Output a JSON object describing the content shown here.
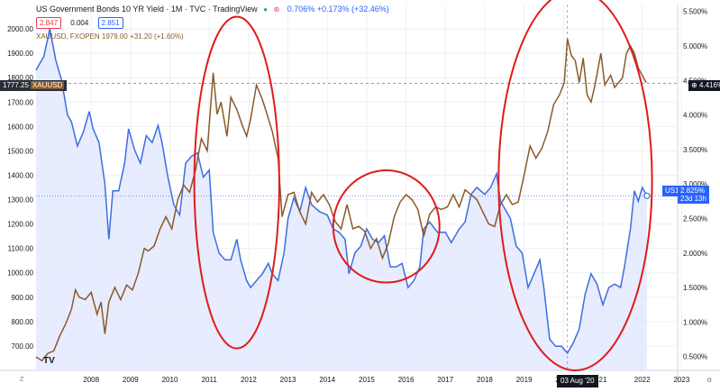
{
  "header": {
    "title": "US Government Bonds 10 YR Yield · 1M · TVC · TradingView",
    "change": "0.706% +0.173% (+32.46%)",
    "bid": "2.847",
    "spread": "0.004",
    "ask": "2.851",
    "gold_line": "XAUUSD, FXOPEN  1979.00  +31.20 (+1.60%)"
  },
  "tags": {
    "gold_left_value": "1777.25",
    "gold_left_name": "XAUUSD",
    "gold_right": "4.416%",
    "us10_left": "US10",
    "us10_right_value": "2.825%",
    "us10_right_time": "23d 13h",
    "crosshair_date": "03 Aug '20"
  },
  "colors": {
    "gold": "#8a5a2b",
    "yield": "#3d6ee0",
    "fill": "#dfe6ff",
    "ellipse": "#e01b1b",
    "grid": "#eef0f3"
  },
  "chart_data": {
    "type": "line",
    "title": "US Government Bonds 10 YR Yield · 1M · TVC · TradingView",
    "left_axis": {
      "name": "XAUUSD",
      "ylim": [
        600,
        2100
      ],
      "ticks": [
        "700.00",
        "800.00",
        "900.00",
        "1000.00",
        "1100.00",
        "1200.00",
        "1300.00",
        "1400.00",
        "1500.00",
        "1600.00",
        "1700.00",
        "1800.00",
        "1900.00",
        "2000.00"
      ]
    },
    "right_axis": {
      "name": "US10Y",
      "ylim": [
        0.3,
        5.6
      ],
      "ticks": [
        "0.500%",
        "1.000%",
        "1.500%",
        "2.000%",
        "2.500%",
        "3.000%",
        "3.500%",
        "4.000%",
        "4.500%",
        "5.000%",
        "5.500%"
      ]
    },
    "x_ticks": [
      "2008",
      "2009",
      "2010",
      "2011",
      "2012",
      "2013",
      "2014",
      "2015",
      "2016",
      "2017",
      "2018",
      "2019",
      "2020",
      "21",
      "2022",
      "2023"
    ],
    "x_range": [
      2007.1,
      2023.4
    ],
    "series": [
      {
        "name": "US10Y",
        "axis": "right",
        "points": [
          [
            2007.1,
            4.65
          ],
          [
            2007.3,
            4.85
          ],
          [
            2007.45,
            5.25
          ],
          [
            2007.6,
            4.8
          ],
          [
            2007.75,
            4.5
          ],
          [
            2007.9,
            4.0
          ],
          [
            2008.0,
            3.9
          ],
          [
            2008.15,
            3.55
          ],
          [
            2008.3,
            3.75
          ],
          [
            2008.45,
            4.05
          ],
          [
            2008.55,
            3.8
          ],
          [
            2008.7,
            3.6
          ],
          [
            2008.85,
            3.0
          ],
          [
            2008.95,
            2.2
          ],
          [
            2009.05,
            2.9
          ],
          [
            2009.2,
            2.9
          ],
          [
            2009.35,
            3.3
          ],
          [
            2009.45,
            3.8
          ],
          [
            2009.6,
            3.5
          ],
          [
            2009.75,
            3.3
          ],
          [
            2009.9,
            3.7
          ],
          [
            2010.05,
            3.6
          ],
          [
            2010.2,
            3.85
          ],
          [
            2010.3,
            3.6
          ],
          [
            2010.45,
            3.1
          ],
          [
            2010.6,
            2.7
          ],
          [
            2010.75,
            2.55
          ],
          [
            2010.9,
            3.3
          ],
          [
            2011.05,
            3.4
          ],
          [
            2011.2,
            3.45
          ],
          [
            2011.35,
            3.1
          ],
          [
            2011.5,
            3.2
          ],
          [
            2011.6,
            2.3
          ],
          [
            2011.75,
            2.0
          ],
          [
            2011.9,
            1.9
          ],
          [
            2012.05,
            1.9
          ],
          [
            2012.2,
            2.2
          ],
          [
            2012.3,
            1.9
          ],
          [
            2012.45,
            1.6
          ],
          [
            2012.55,
            1.5
          ],
          [
            2012.7,
            1.6
          ],
          [
            2012.85,
            1.7
          ],
          [
            2013.0,
            1.85
          ],
          [
            2013.1,
            1.7
          ],
          [
            2013.25,
            1.6
          ],
          [
            2013.4,
            2.0
          ],
          [
            2013.5,
            2.5
          ],
          [
            2013.65,
            2.8
          ],
          [
            2013.8,
            2.6
          ],
          [
            2013.95,
            2.95
          ],
          [
            2014.1,
            2.7
          ],
          [
            2014.3,
            2.6
          ],
          [
            2014.5,
            2.55
          ],
          [
            2014.65,
            2.35
          ],
          [
            2014.8,
            2.3
          ],
          [
            2014.95,
            2.2
          ],
          [
            2015.05,
            1.7
          ],
          [
            2015.2,
            2.0
          ],
          [
            2015.35,
            2.1
          ],
          [
            2015.5,
            2.35
          ],
          [
            2015.65,
            2.2
          ],
          [
            2015.8,
            2.15
          ],
          [
            2015.95,
            2.25
          ],
          [
            2016.1,
            1.8
          ],
          [
            2016.25,
            1.8
          ],
          [
            2016.4,
            1.85
          ],
          [
            2016.55,
            1.5
          ],
          [
            2016.7,
            1.6
          ],
          [
            2016.85,
            1.8
          ],
          [
            2016.95,
            2.35
          ],
          [
            2017.1,
            2.45
          ],
          [
            2017.3,
            2.3
          ],
          [
            2017.5,
            2.3
          ],
          [
            2017.65,
            2.15
          ],
          [
            2017.85,
            2.35
          ],
          [
            2018.0,
            2.45
          ],
          [
            2018.15,
            2.85
          ],
          [
            2018.3,
            2.95
          ],
          [
            2018.5,
            2.85
          ],
          [
            2018.65,
            2.95
          ],
          [
            2018.8,
            3.15
          ],
          [
            2018.9,
            2.75
          ],
          [
            2019.0,
            2.65
          ],
          [
            2019.15,
            2.5
          ],
          [
            2019.3,
            2.1
          ],
          [
            2019.45,
            2.0
          ],
          [
            2019.6,
            1.5
          ],
          [
            2019.75,
            1.7
          ],
          [
            2019.9,
            1.9
          ],
          [
            2020.0,
            1.5
          ],
          [
            2020.15,
            0.75
          ],
          [
            2020.3,
            0.65
          ],
          [
            2020.45,
            0.65
          ],
          [
            2020.6,
            0.55
          ],
          [
            2020.75,
            0.7
          ],
          [
            2020.9,
            0.9
          ],
          [
            2021.05,
            1.4
          ],
          [
            2021.2,
            1.7
          ],
          [
            2021.35,
            1.55
          ],
          [
            2021.5,
            1.25
          ],
          [
            2021.65,
            1.5
          ],
          [
            2021.8,
            1.55
          ],
          [
            2021.95,
            1.5
          ],
          [
            2022.05,
            1.8
          ],
          [
            2022.2,
            2.35
          ],
          [
            2022.3,
            2.9
          ],
          [
            2022.4,
            2.75
          ],
          [
            2022.5,
            2.95
          ],
          [
            2022.62,
            2.83
          ]
        ]
      },
      {
        "name": "XAUUSD",
        "axis": "left",
        "points": [
          [
            2007.1,
            655
          ],
          [
            2007.25,
            640
          ],
          [
            2007.4,
            670
          ],
          [
            2007.55,
            680
          ],
          [
            2007.7,
            740
          ],
          [
            2007.85,
            790
          ],
          [
            2008.0,
            850
          ],
          [
            2008.1,
            930
          ],
          [
            2008.2,
            900
          ],
          [
            2008.35,
            890
          ],
          [
            2008.5,
            920
          ],
          [
            2008.65,
            830
          ],
          [
            2008.75,
            880
          ],
          [
            2008.85,
            750
          ],
          [
            2008.95,
            880
          ],
          [
            2009.1,
            940
          ],
          [
            2009.25,
            890
          ],
          [
            2009.4,
            950
          ],
          [
            2009.55,
            930
          ],
          [
            2009.7,
            1000
          ],
          [
            2009.85,
            1100
          ],
          [
            2009.95,
            1090
          ],
          [
            2010.1,
            1110
          ],
          [
            2010.25,
            1180
          ],
          [
            2010.4,
            1230
          ],
          [
            2010.55,
            1180
          ],
          [
            2010.7,
            1300
          ],
          [
            2010.85,
            1360
          ],
          [
            2011.0,
            1330
          ],
          [
            2011.15,
            1420
          ],
          [
            2011.3,
            1550
          ],
          [
            2011.45,
            1500
          ],
          [
            2011.6,
            1820
          ],
          [
            2011.7,
            1650
          ],
          [
            2011.8,
            1700
          ],
          [
            2011.95,
            1560
          ],
          [
            2012.05,
            1720
          ],
          [
            2012.2,
            1670
          ],
          [
            2012.35,
            1600
          ],
          [
            2012.45,
            1560
          ],
          [
            2012.55,
            1630
          ],
          [
            2012.7,
            1770
          ],
          [
            2012.85,
            1710
          ],
          [
            2012.95,
            1660
          ],
          [
            2013.1,
            1580
          ],
          [
            2013.25,
            1470
          ],
          [
            2013.35,
            1230
          ],
          [
            2013.5,
            1320
          ],
          [
            2013.65,
            1330
          ],
          [
            2013.8,
            1250
          ],
          [
            2013.95,
            1200
          ],
          [
            2014.1,
            1330
          ],
          [
            2014.25,
            1290
          ],
          [
            2014.4,
            1320
          ],
          [
            2014.55,
            1280
          ],
          [
            2014.7,
            1210
          ],
          [
            2014.85,
            1180
          ],
          [
            2015.0,
            1280
          ],
          [
            2015.15,
            1180
          ],
          [
            2015.3,
            1190
          ],
          [
            2015.45,
            1170
          ],
          [
            2015.6,
            1100
          ],
          [
            2015.75,
            1140
          ],
          [
            2015.9,
            1060
          ],
          [
            2016.05,
            1120
          ],
          [
            2016.2,
            1230
          ],
          [
            2016.35,
            1290
          ],
          [
            2016.5,
            1320
          ],
          [
            2016.65,
            1300
          ],
          [
            2016.8,
            1260
          ],
          [
            2016.95,
            1150
          ],
          [
            2017.1,
            1240
          ],
          [
            2017.25,
            1270
          ],
          [
            2017.4,
            1260
          ],
          [
            2017.55,
            1270
          ],
          [
            2017.7,
            1320
          ],
          [
            2017.85,
            1270
          ],
          [
            2018.0,
            1340
          ],
          [
            2018.15,
            1320
          ],
          [
            2018.3,
            1300
          ],
          [
            2018.45,
            1250
          ],
          [
            2018.6,
            1200
          ],
          [
            2018.75,
            1190
          ],
          [
            2018.9,
            1280
          ],
          [
            2019.05,
            1320
          ],
          [
            2019.2,
            1280
          ],
          [
            2019.35,
            1290
          ],
          [
            2019.5,
            1400
          ],
          [
            2019.65,
            1520
          ],
          [
            2019.8,
            1470
          ],
          [
            2019.95,
            1510
          ],
          [
            2020.1,
            1580
          ],
          [
            2020.25,
            1690
          ],
          [
            2020.4,
            1730
          ],
          [
            2020.52,
            1780
          ],
          [
            2020.6,
            1960
          ],
          [
            2020.7,
            1890
          ],
          [
            2020.8,
            1870
          ],
          [
            2020.9,
            1780
          ],
          [
            2021.0,
            1880
          ],
          [
            2021.1,
            1730
          ],
          [
            2021.2,
            1700
          ],
          [
            2021.3,
            1770
          ],
          [
            2021.45,
            1900
          ],
          [
            2021.55,
            1770
          ],
          [
            2021.7,
            1810
          ],
          [
            2021.8,
            1760
          ],
          [
            2021.9,
            1780
          ],
          [
            2022.0,
            1800
          ],
          [
            2022.1,
            1900
          ],
          [
            2022.2,
            1930
          ],
          [
            2022.3,
            1900
          ],
          [
            2022.4,
            1840
          ],
          [
            2022.5,
            1810
          ],
          [
            2022.6,
            1780
          ]
        ]
      }
    ],
    "annotations": [
      {
        "type": "ellipse",
        "cx": 2012.2,
        "cy_left": 1370,
        "rx_years": 1.08,
        "ry_left": 680
      },
      {
        "type": "ellipse",
        "cx": 2016.0,
        "cy_left": 1190,
        "rx_years": 1.35,
        "ry_left": 230
      },
      {
        "type": "ellipse",
        "cx": 2020.8,
        "cy_left": 1380,
        "rx_years": 1.95,
        "ry_left": 780
      }
    ],
    "grid": true
  }
}
